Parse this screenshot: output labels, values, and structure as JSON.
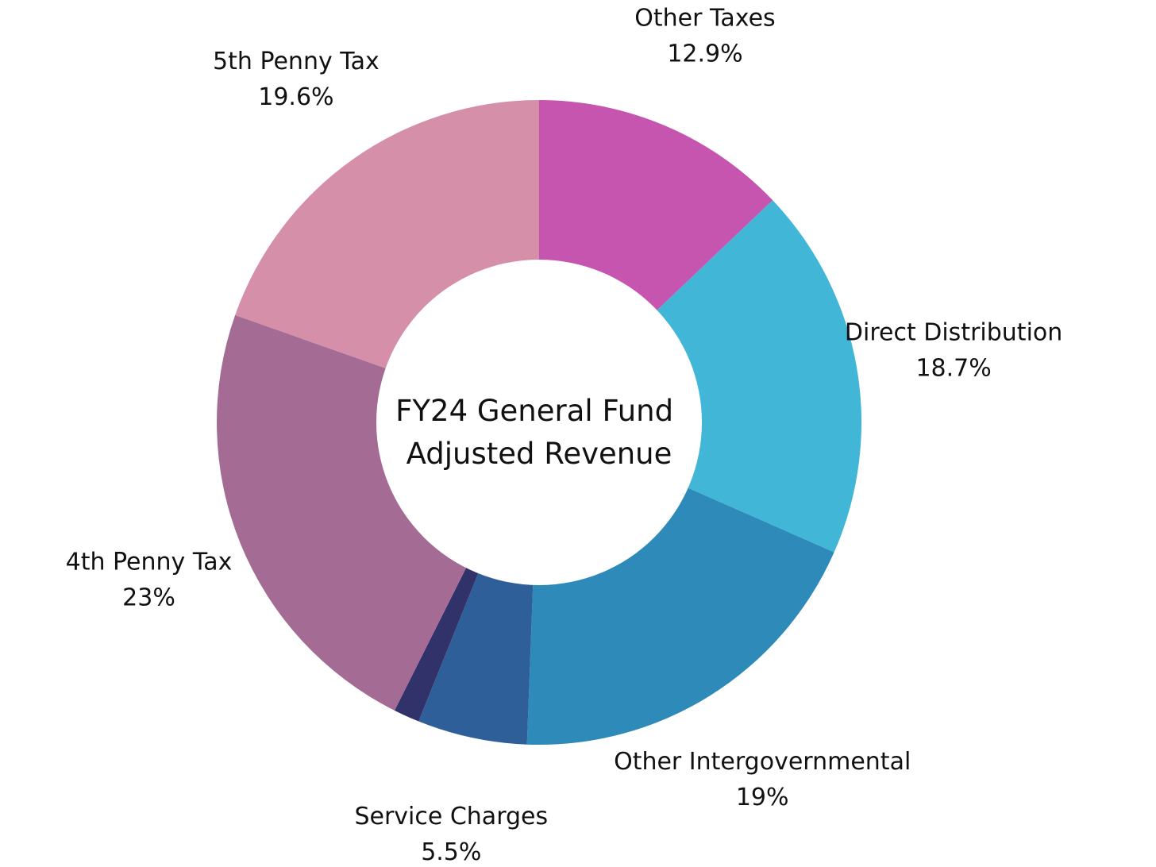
{
  "chart_data": {
    "type": "pie",
    "variant": "donut",
    "center_title": [
      "FY24 General Fund",
      "Adjusted Revenue"
    ],
    "start_angle_deg": 0,
    "direction": "clockwise",
    "label_format": "{name}|{value_text}",
    "slices": [
      {
        "name": "Other Taxes",
        "value": 12.9,
        "value_text": "12.9%",
        "color": "#C655B0"
      },
      {
        "name": "Direct Distribution",
        "value": 18.7,
        "value_text": "18.7%",
        "color": "#41B6D6"
      },
      {
        "name": "Other Intergovernmental",
        "value": 19.0,
        "value_text": "19%",
        "color": "#2D8AB9"
      },
      {
        "name": "Service Charges",
        "value": 5.5,
        "value_text": "5.5%",
        "color": "#2F5F99"
      },
      {
        "name": "",
        "value": 1.3,
        "value_text": "",
        "color": "#32326A"
      },
      {
        "name": "4th Penny Tax",
        "value": 23.0,
        "value_text": "23%",
        "color": "#A46C95"
      },
      {
        "name": "5th Penny Tax",
        "value": 19.6,
        "value_text": "19.6%",
        "color": "#D58FA9"
      }
    ]
  }
}
